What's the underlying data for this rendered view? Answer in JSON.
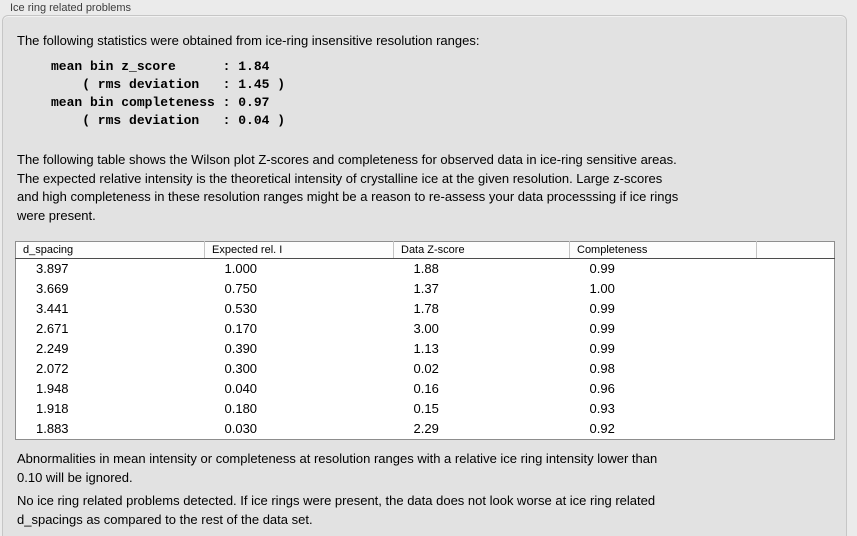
{
  "panel": {
    "title": "Ice ring related problems",
    "intro": "The following statistics were obtained from ice-ring insensitive resolution ranges:",
    "stats_block": "mean bin z_score      : 1.84\n    ( rms deviation   : 1.45 )\nmean bin completeness : 0.97\n    ( rms deviation   : 0.04 )",
    "description": "The following table shows the Wilson plot Z-scores and completeness for observed data in ice-ring sensitive areas.\nThe expected relative intensity is the theoretical intensity of crystalline ice at the given resolution. Large z-scores\nand high completeness in these resolution ranges might be a reason to re-assess your data processsing if ice rings\nwere present.",
    "note": "Abnormalities in mean intensity or completeness at resolution ranges with a relative ice ring intensity lower than\n0.10 will be ignored.",
    "conclusion": "No ice ring related problems detected. If ice rings were present, the data does not look worse at ice ring related\nd_spacings as compared to the rest of the data set."
  },
  "stats": {
    "mean_bin_z_score": "1.84",
    "z_score_rms_deviation": "1.45",
    "mean_bin_completeness": "0.97",
    "completeness_rms_deviation": "0.04"
  },
  "table": {
    "columns": [
      "d_spacing",
      "Expected rel. I",
      "Data Z-score",
      "Completeness",
      ""
    ],
    "rows": [
      [
        "3.897",
        "1.000",
        "1.88",
        "0.99"
      ],
      [
        "3.669",
        "0.750",
        "1.37",
        "1.00"
      ],
      [
        "3.441",
        "0.530",
        "1.78",
        "0.99"
      ],
      [
        "2.671",
        "0.170",
        "3.00",
        "0.99"
      ],
      [
        "2.249",
        "0.390",
        "1.13",
        "0.99"
      ],
      [
        "2.072",
        "0.300",
        "0.02",
        "0.98"
      ],
      [
        "1.948",
        "0.040",
        "0.16",
        "0.96"
      ],
      [
        "1.918",
        "0.180",
        "0.15",
        "0.93"
      ],
      [
        "1.883",
        "0.030",
        "2.29",
        "0.92"
      ]
    ]
  },
  "colors": {
    "page_background": "#ebebeb",
    "panel_background": "#e2e2e2",
    "panel_border": "#c6c6c6",
    "table_background": "#ffffff",
    "table_border": "#8d8d8d",
    "header_divider": "#c3c3c3",
    "header_underline": "#4a4a4a",
    "text": "#000000",
    "label_text": "#3c3c3c"
  }
}
